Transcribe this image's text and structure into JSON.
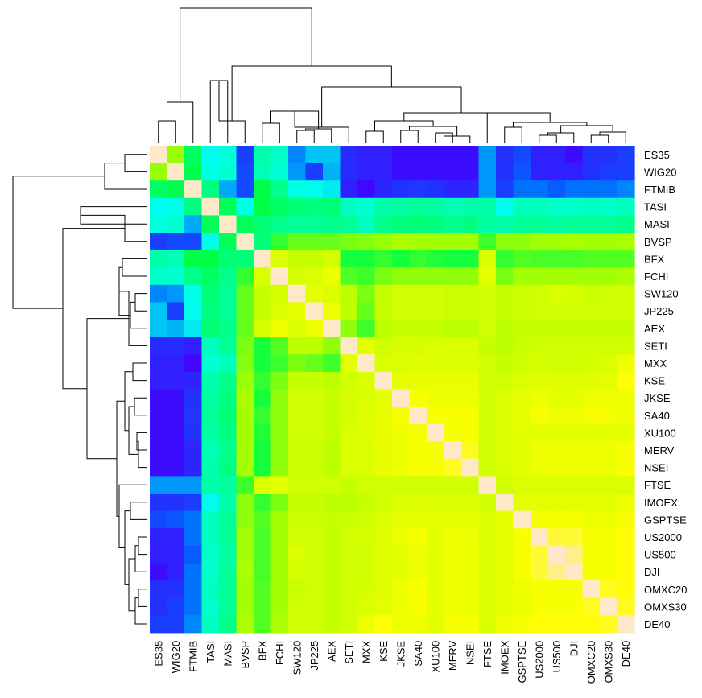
{
  "chart_data": {
    "type": "heatmap",
    "title": "",
    "xlabel": "",
    "ylabel": "",
    "labels": [
      "ES35",
      "WIG20",
      "FTMIB",
      "TASI",
      "MASI",
      "BVSP",
      "BFX",
      "FCHI",
      "SW120",
      "JP225",
      "AEX",
      "SETI",
      "MXX",
      "KSE",
      "JKSE",
      "SA40",
      "XU100",
      "MERV",
      "NSEI",
      "FTSE",
      "IMOEX",
      "GSPTSE",
      "US2000",
      "US500",
      "DJI",
      "OMXC20",
      "OMXS30",
      "DE40"
    ],
    "row_labels": [
      "ES35",
      "WIG20",
      "FTMIB",
      "TASI",
      "MASI",
      "BVSP",
      "BFX",
      "FCHI",
      "SW120",
      "JP225",
      "AEX",
      "SETI",
      "MXX",
      "KSE",
      "JKSE",
      "SA40",
      "XU100",
      "MERV",
      "NSEI",
      "FTSE",
      "IMOEX",
      "GSPTSE",
      "US2000",
      "US500",
      "DJI",
      "OMXC20",
      "OMXS30",
      "DE40"
    ],
    "column_labels": [
      "ES35",
      "WIG20",
      "FTMIB",
      "TASI",
      "MASI",
      "BVSP",
      "BFX",
      "FCHI",
      "SW120",
      "JP225",
      "AEX",
      "SETI",
      "MXX",
      "KSE",
      "JKSE",
      "SA40",
      "XU100",
      "MERV",
      "NSEI",
      "FTSE",
      "IMOEX",
      "GSPTSE",
      "US2000",
      "US500",
      "DJI",
      "OMXC20",
      "OMXS30",
      "DE40"
    ],
    "values": [
      [
        1.0,
        0.65,
        0.47,
        0.33,
        0.35,
        0.1,
        0.4,
        0.37,
        0.2,
        0.27,
        0.27,
        0.07,
        0.05,
        0.05,
        0.02,
        0.02,
        0.02,
        0.02,
        0.02,
        0.22,
        0.08,
        0.12,
        0.05,
        0.05,
        0.02,
        0.08,
        0.08,
        0.1
      ],
      [
        0.65,
        1.0,
        0.49,
        0.34,
        0.36,
        0.12,
        0.39,
        0.36,
        0.22,
        0.1,
        0.25,
        0.07,
        0.05,
        0.05,
        0.02,
        0.02,
        0.02,
        0.02,
        0.02,
        0.22,
        0.08,
        0.14,
        0.05,
        0.05,
        0.05,
        0.08,
        0.1,
        0.1
      ],
      [
        0.47,
        0.49,
        1.0,
        0.44,
        0.24,
        0.12,
        0.5,
        0.43,
        0.34,
        0.33,
        0.31,
        0.05,
        0.01,
        0.06,
        0.08,
        0.09,
        0.08,
        0.06,
        0.06,
        0.22,
        0.1,
        0.18,
        0.18,
        0.15,
        0.18,
        0.18,
        0.18,
        0.2
      ],
      [
        0.33,
        0.34,
        0.44,
        1.0,
        0.48,
        0.34,
        0.5,
        0.47,
        0.45,
        0.44,
        0.45,
        0.38,
        0.36,
        0.4,
        0.41,
        0.42,
        0.41,
        0.39,
        0.4,
        0.4,
        0.33,
        0.38,
        0.38,
        0.37,
        0.37,
        0.38,
        0.37,
        0.38
      ],
      [
        0.35,
        0.36,
        0.24,
        0.48,
        1.0,
        0.48,
        0.45,
        0.43,
        0.42,
        0.42,
        0.43,
        0.42,
        0.38,
        0.43,
        0.44,
        0.45,
        0.44,
        0.43,
        0.44,
        0.41,
        0.4,
        0.42,
        0.42,
        0.41,
        0.42,
        0.42,
        0.42,
        0.43
      ],
      [
        0.1,
        0.12,
        0.12,
        0.34,
        0.48,
        1.0,
        0.45,
        0.55,
        0.6,
        0.6,
        0.6,
        0.62,
        0.63,
        0.65,
        0.67,
        0.66,
        0.66,
        0.66,
        0.66,
        0.56,
        0.64,
        0.64,
        0.66,
        0.66,
        0.67,
        0.66,
        0.66,
        0.67
      ],
      [
        0.4,
        0.39,
        0.5,
        0.5,
        0.45,
        0.45,
        1.0,
        0.76,
        0.72,
        0.72,
        0.75,
        0.52,
        0.52,
        0.55,
        0.52,
        0.55,
        0.53,
        0.52,
        0.52,
        0.76,
        0.55,
        0.58,
        0.57,
        0.57,
        0.57,
        0.58,
        0.58,
        0.58
      ],
      [
        0.37,
        0.36,
        0.43,
        0.47,
        0.43,
        0.55,
        0.76,
        1.0,
        0.75,
        0.76,
        0.8,
        0.58,
        0.56,
        0.62,
        0.64,
        0.64,
        0.64,
        0.64,
        0.64,
        0.78,
        0.62,
        0.66,
        0.66,
        0.66,
        0.66,
        0.66,
        0.66,
        0.67
      ],
      [
        0.2,
        0.22,
        0.34,
        0.45,
        0.42,
        0.6,
        0.72,
        0.75,
        1.0,
        0.78,
        0.76,
        0.7,
        0.62,
        0.72,
        0.74,
        0.74,
        0.74,
        0.73,
        0.73,
        0.74,
        0.72,
        0.73,
        0.74,
        0.76,
        0.75,
        0.73,
        0.74,
        0.74
      ],
      [
        0.27,
        0.1,
        0.33,
        0.44,
        0.42,
        0.6,
        0.72,
        0.76,
        0.78,
        1.0,
        0.8,
        0.7,
        0.6,
        0.72,
        0.74,
        0.74,
        0.74,
        0.73,
        0.73,
        0.74,
        0.72,
        0.73,
        0.74,
        0.74,
        0.74,
        0.74,
        0.74,
        0.74
      ],
      [
        0.27,
        0.25,
        0.31,
        0.45,
        0.43,
        0.6,
        0.75,
        0.8,
        0.76,
        0.8,
        1.0,
        0.64,
        0.56,
        0.7,
        0.72,
        0.72,
        0.72,
        0.7,
        0.7,
        0.74,
        0.7,
        0.72,
        0.72,
        0.72,
        0.72,
        0.72,
        0.72,
        0.72
      ],
      [
        0.07,
        0.07,
        0.05,
        0.38,
        0.42,
        0.62,
        0.52,
        0.58,
        0.7,
        0.7,
        0.64,
        1.0,
        0.78,
        0.74,
        0.75,
        0.75,
        0.76,
        0.76,
        0.76,
        0.72,
        0.7,
        0.73,
        0.74,
        0.74,
        0.74,
        0.74,
        0.74,
        0.74
      ],
      [
        0.05,
        0.05,
        0.01,
        0.36,
        0.38,
        0.63,
        0.52,
        0.56,
        0.62,
        0.6,
        0.56,
        0.78,
        1.0,
        0.76,
        0.76,
        0.77,
        0.77,
        0.76,
        0.76,
        0.74,
        0.72,
        0.74,
        0.75,
        0.74,
        0.74,
        0.75,
        0.76,
        0.8
      ],
      [
        0.05,
        0.05,
        0.06,
        0.4,
        0.43,
        0.65,
        0.55,
        0.62,
        0.72,
        0.72,
        0.7,
        0.74,
        0.76,
        1.0,
        0.78,
        0.79,
        0.79,
        0.79,
        0.79,
        0.74,
        0.74,
        0.76,
        0.77,
        0.77,
        0.77,
        0.77,
        0.78,
        0.84
      ],
      [
        0.02,
        0.02,
        0.08,
        0.41,
        0.44,
        0.67,
        0.52,
        0.64,
        0.74,
        0.74,
        0.72,
        0.75,
        0.76,
        0.78,
        1.0,
        0.82,
        0.8,
        0.8,
        0.8,
        0.74,
        0.76,
        0.78,
        0.8,
        0.78,
        0.78,
        0.8,
        0.8,
        0.8
      ],
      [
        0.02,
        0.02,
        0.09,
        0.42,
        0.45,
        0.66,
        0.55,
        0.64,
        0.74,
        0.74,
        0.72,
        0.75,
        0.77,
        0.79,
        0.82,
        1.0,
        0.82,
        0.82,
        0.82,
        0.74,
        0.77,
        0.78,
        0.82,
        0.8,
        0.8,
        0.82,
        0.82,
        0.8
      ],
      [
        0.02,
        0.02,
        0.08,
        0.41,
        0.44,
        0.66,
        0.53,
        0.64,
        0.74,
        0.74,
        0.72,
        0.76,
        0.77,
        0.79,
        0.8,
        0.82,
        1.0,
        0.82,
        0.82,
        0.74,
        0.76,
        0.78,
        0.78,
        0.78,
        0.78,
        0.78,
        0.78,
        0.78
      ],
      [
        0.02,
        0.02,
        0.06,
        0.39,
        0.43,
        0.66,
        0.52,
        0.64,
        0.73,
        0.73,
        0.7,
        0.76,
        0.76,
        0.79,
        0.8,
        0.82,
        0.82,
        1.0,
        0.86,
        0.74,
        0.76,
        0.78,
        0.8,
        0.8,
        0.8,
        0.8,
        0.8,
        0.82
      ],
      [
        0.02,
        0.02,
        0.06,
        0.4,
        0.44,
        0.66,
        0.52,
        0.64,
        0.73,
        0.73,
        0.7,
        0.76,
        0.76,
        0.79,
        0.8,
        0.82,
        0.82,
        0.86,
        1.0,
        0.74,
        0.76,
        0.78,
        0.8,
        0.8,
        0.8,
        0.8,
        0.8,
        0.82
      ],
      [
        0.22,
        0.22,
        0.22,
        0.4,
        0.41,
        0.56,
        0.76,
        0.78,
        0.74,
        0.74,
        0.74,
        0.72,
        0.74,
        0.74,
        0.74,
        0.74,
        0.74,
        0.74,
        0.74,
        1.0,
        0.74,
        0.76,
        0.76,
        0.76,
        0.76,
        0.76,
        0.76,
        0.76
      ],
      [
        0.08,
        0.08,
        0.1,
        0.33,
        0.4,
        0.64,
        0.55,
        0.62,
        0.72,
        0.72,
        0.7,
        0.7,
        0.72,
        0.74,
        0.76,
        0.77,
        0.76,
        0.76,
        0.76,
        0.74,
        1.0,
        0.78,
        0.78,
        0.78,
        0.78,
        0.78,
        0.78,
        0.8
      ],
      [
        0.12,
        0.14,
        0.18,
        0.38,
        0.42,
        0.64,
        0.58,
        0.66,
        0.73,
        0.73,
        0.72,
        0.73,
        0.74,
        0.76,
        0.78,
        0.78,
        0.78,
        0.78,
        0.78,
        0.76,
        0.78,
        1.0,
        0.82,
        0.82,
        0.82,
        0.8,
        0.8,
        0.82
      ],
      [
        0.05,
        0.05,
        0.18,
        0.38,
        0.42,
        0.66,
        0.57,
        0.66,
        0.74,
        0.74,
        0.72,
        0.74,
        0.75,
        0.77,
        0.8,
        0.82,
        0.78,
        0.8,
        0.8,
        0.76,
        0.78,
        0.82,
        1.0,
        0.88,
        0.88,
        0.82,
        0.82,
        0.84
      ],
      [
        0.05,
        0.05,
        0.15,
        0.37,
        0.41,
        0.66,
        0.57,
        0.66,
        0.76,
        0.74,
        0.72,
        0.74,
        0.74,
        0.77,
        0.78,
        0.8,
        0.78,
        0.8,
        0.8,
        0.76,
        0.78,
        0.82,
        0.88,
        1.0,
        0.95,
        0.82,
        0.82,
        0.84
      ],
      [
        0.02,
        0.05,
        0.18,
        0.37,
        0.42,
        0.67,
        0.57,
        0.66,
        0.75,
        0.74,
        0.72,
        0.74,
        0.74,
        0.77,
        0.78,
        0.8,
        0.78,
        0.8,
        0.8,
        0.76,
        0.78,
        0.82,
        0.88,
        0.95,
        1.0,
        0.82,
        0.82,
        0.84
      ],
      [
        0.08,
        0.08,
        0.18,
        0.38,
        0.42,
        0.66,
        0.58,
        0.66,
        0.73,
        0.74,
        0.72,
        0.74,
        0.75,
        0.77,
        0.8,
        0.82,
        0.78,
        0.8,
        0.8,
        0.76,
        0.78,
        0.8,
        0.82,
        0.82,
        0.82,
        1.0,
        0.86,
        0.84
      ],
      [
        0.08,
        0.1,
        0.18,
        0.37,
        0.42,
        0.66,
        0.58,
        0.66,
        0.74,
        0.74,
        0.72,
        0.74,
        0.76,
        0.78,
        0.8,
        0.82,
        0.78,
        0.8,
        0.8,
        0.76,
        0.78,
        0.8,
        0.82,
        0.82,
        0.82,
        0.86,
        1.0,
        0.86
      ],
      [
        0.1,
        0.1,
        0.2,
        0.38,
        0.43,
        0.67,
        0.58,
        0.67,
        0.74,
        0.74,
        0.72,
        0.74,
        0.8,
        0.84,
        0.8,
        0.8,
        0.78,
        0.82,
        0.82,
        0.76,
        0.8,
        0.82,
        0.84,
        0.84,
        0.84,
        0.84,
        0.86,
        1.0
      ]
    ],
    "color_scale": [
      "#4400ff",
      "#0066ff",
      "#00ffee",
      "#00ff44",
      "#aaff00",
      "#ffff00",
      "#ffe8c8"
    ],
    "grid": false,
    "dendrograms": "row and column"
  }
}
